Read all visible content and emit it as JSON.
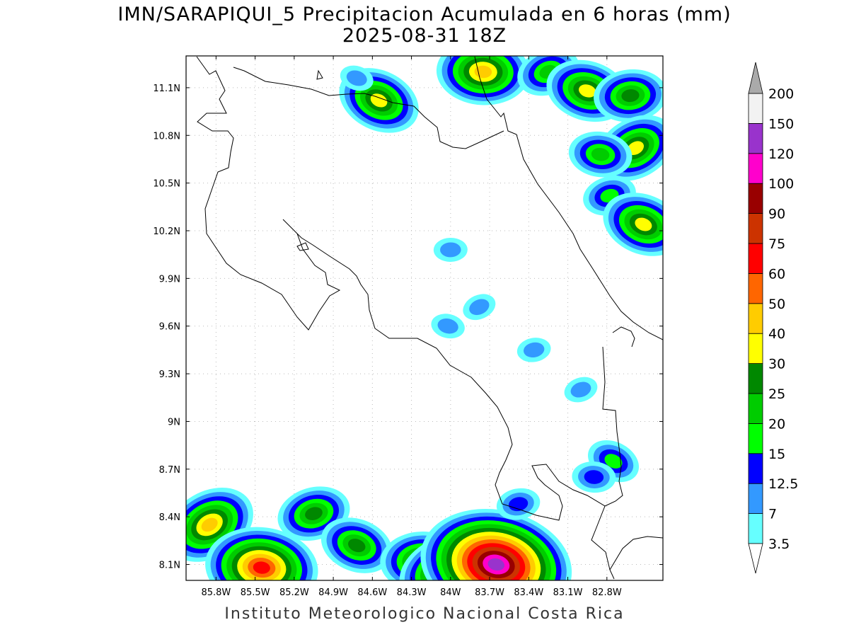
{
  "title": {
    "line1": "IMN/SARAPIQUI_5 Precipitacion Acumulada en 6 horas (mm)",
    "line2": "2025-08-31 18Z"
  },
  "credit": "Instituto Meteorologico Nacional Costa Rica",
  "map": {
    "lon_range": [
      -86.03,
      -82.37
    ],
    "lat_range": [
      8.0,
      11.3
    ],
    "lon_ticks": [
      {
        "value": -85.8,
        "label": "85.8W"
      },
      {
        "value": -85.5,
        "label": "85.5W"
      },
      {
        "value": -85.2,
        "label": "85.2W"
      },
      {
        "value": -84.9,
        "label": "84.9W"
      },
      {
        "value": -84.6,
        "label": "84.6W"
      },
      {
        "value": -84.3,
        "label": "84.3W"
      },
      {
        "value": -84.0,
        "label": "84W"
      },
      {
        "value": -83.7,
        "label": "83.7W"
      },
      {
        "value": -83.4,
        "label": "83.4W"
      },
      {
        "value": -83.1,
        "label": "83.1W"
      },
      {
        "value": -82.8,
        "label": "82.8W"
      }
    ],
    "lat_ticks": [
      {
        "value": 8.1,
        "label": "8.1N"
      },
      {
        "value": 8.4,
        "label": "8.4N"
      },
      {
        "value": 8.7,
        "label": "8.7N"
      },
      {
        "value": 9.0,
        "label": "9N"
      },
      {
        "value": 9.3,
        "label": "9.3N"
      },
      {
        "value": 9.6,
        "label": "9.6N"
      },
      {
        "value": 9.9,
        "label": "9.9N"
      },
      {
        "value": 10.2,
        "label": "10.2N"
      },
      {
        "value": 10.5,
        "label": "10.5N"
      },
      {
        "value": 10.8,
        "label": "10.8N"
      },
      {
        "value": 11.1,
        "label": "11.1N"
      }
    ],
    "grid": true
  },
  "colorbar": {
    "levels": [
      "3.5",
      "7",
      "12.5",
      "15",
      "20",
      "25",
      "30",
      "40",
      "50",
      "60",
      "75",
      "90",
      "100",
      "120",
      "150",
      "200"
    ],
    "colors": [
      "#66ffff",
      "#3399ff",
      "#0000ff",
      "#00ff00",
      "#00cc00",
      "#008800",
      "#ffff00",
      "#ffcc00",
      "#ff6600",
      "#ff0000",
      "#cc3300",
      "#990000",
      "#ff00cc",
      "#9933cc",
      "#f2f2f2",
      "#aaaaaa"
    ]
  },
  "rain_cells": [
    {
      "lon": -85.85,
      "lat": 8.35,
      "max": 40
    },
    {
      "lon": -85.45,
      "lat": 8.08,
      "max": 60
    },
    {
      "lon": -85.05,
      "lat": 8.42,
      "max": 25
    },
    {
      "lon": -84.72,
      "lat": 8.22,
      "max": 25
    },
    {
      "lon": -84.22,
      "lat": 8.12,
      "max": 30
    },
    {
      "lon": -84.05,
      "lat": 8.06,
      "max": 40
    },
    {
      "lon": -83.65,
      "lat": 8.1,
      "max": 120
    },
    {
      "lon": -83.48,
      "lat": 8.48,
      "max": 12.5
    },
    {
      "lon": -84.55,
      "lat": 11.02,
      "max": 30
    },
    {
      "lon": -83.75,
      "lat": 11.2,
      "max": 40
    },
    {
      "lon": -83.25,
      "lat": 11.2,
      "max": 20
    },
    {
      "lon": -82.95,
      "lat": 11.08,
      "max": 30
    },
    {
      "lon": -82.62,
      "lat": 11.05,
      "max": 25
    },
    {
      "lon": -82.58,
      "lat": 10.72,
      "max": 30
    },
    {
      "lon": -82.85,
      "lat": 10.68,
      "max": 20
    },
    {
      "lon": -82.78,
      "lat": 10.42,
      "max": 15
    },
    {
      "lon": -82.52,
      "lat": 10.24,
      "max": 30
    },
    {
      "lon": -84.0,
      "lat": 10.08,
      "max": 7
    },
    {
      "lon": -83.78,
      "lat": 9.72,
      "max": 7
    },
    {
      "lon": -84.02,
      "lat": 9.6,
      "max": 7
    },
    {
      "lon": -83.36,
      "lat": 9.45,
      "max": 7
    },
    {
      "lon": -82.75,
      "lat": 8.75,
      "max": 15
    },
    {
      "lon": -82.9,
      "lat": 8.65,
      "max": 12.5
    },
    {
      "lon": -83.0,
      "lat": 9.2,
      "max": 7
    },
    {
      "lon": -84.72,
      "lat": 11.16,
      "max": 7
    }
  ]
}
